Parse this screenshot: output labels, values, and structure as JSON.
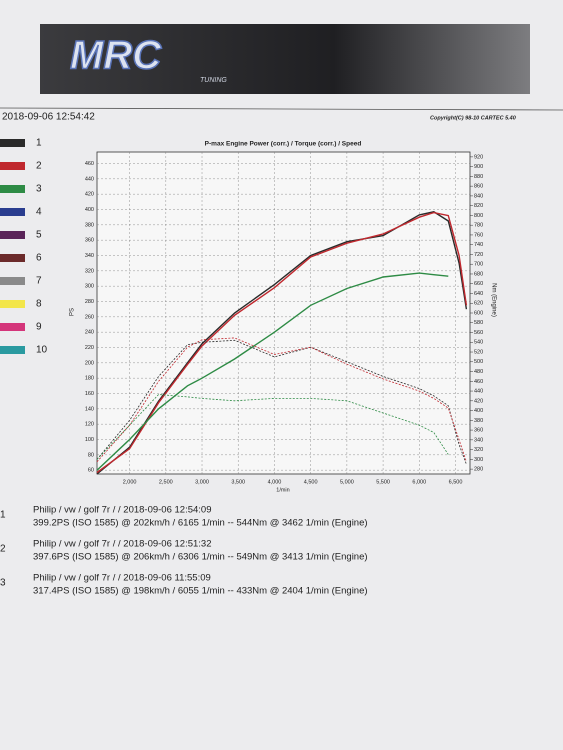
{
  "header": {
    "logo": "MRC",
    "logo_sub": "TUNING",
    "datetime": "2018-09-06 12:54:42",
    "copyright": "Copyright(C) 98-10 CARTEC 5.40"
  },
  "legend": [
    {
      "label": "1",
      "color": "#2a2a2a"
    },
    {
      "label": "2",
      "color": "#c0282e"
    },
    {
      "label": "3",
      "color": "#2e8b45"
    },
    {
      "label": "4",
      "color": "#2a3d8f"
    },
    {
      "label": "5",
      "color": "#5a2358"
    },
    {
      "label": "6",
      "color": "#6b2a2a"
    },
    {
      "label": "7",
      "color": "#8a8a8a"
    },
    {
      "label": "8",
      "color": "#f3e64a"
    },
    {
      "label": "9",
      "color": "#d4357a"
    },
    {
      "label": "10",
      "color": "#2a9aa0"
    }
  ],
  "chart_data": {
    "type": "line",
    "title": "P-max Engine Power (corr.) / Torque (corr.) / Speed",
    "y_label": "PS",
    "y2_label": "Nm (Engine)",
    "x_label": "1/min",
    "x": [
      1550,
      2000,
      2400,
      2800,
      3000,
      3450,
      4000,
      4500,
      5000,
      5500,
      6000,
      6200,
      6400,
      6550,
      6650
    ],
    "xlim": [
      1550,
      6700
    ],
    "xticks": [
      {
        "value": 2000,
        "label": "2,000"
      },
      {
        "value": 2500,
        "label": "2,500"
      },
      {
        "value": 3000,
        "label": "3,000"
      },
      {
        "value": 3500,
        "label": "3,500"
      },
      {
        "value": 4000,
        "label": "4,000"
      },
      {
        "value": 4500,
        "label": "4,500"
      },
      {
        "value": 5000,
        "label": "5,000"
      },
      {
        "value": 5500,
        "label": "5,500"
      },
      {
        "value": 6000,
        "label": "6,000"
      },
      {
        "value": 6500,
        "label": "6,500"
      }
    ],
    "ylim": [
      55,
      475
    ],
    "yticks": [
      60,
      80,
      100,
      120,
      140,
      160,
      180,
      200,
      220,
      240,
      260,
      280,
      300,
      320,
      340,
      360,
      380,
      400,
      420,
      440,
      460
    ],
    "y2lim": [
      270,
      930
    ],
    "y2ticks": [
      280,
      300,
      320,
      340,
      360,
      380,
      400,
      420,
      440,
      460,
      480,
      500,
      520,
      540,
      560,
      580,
      600,
      620,
      640,
      660,
      680,
      700,
      720,
      740,
      760,
      780,
      800,
      820,
      840,
      860,
      880,
      900,
      920
    ],
    "grid": true,
    "series": [
      {
        "color": "#2a2a2a",
        "dash": false,
        "values": [
          55,
          90,
          150,
          200,
          225,
          265,
          302,
          340,
          358,
          366,
          393,
          397,
          385,
          330,
          270
        ]
      },
      {
        "color": "#c0282e",
        "dash": false,
        "values": [
          57,
          88,
          148,
          198,
          222,
          262,
          298,
          338,
          356,
          368,
          390,
          396,
          392,
          340,
          275
        ]
      },
      {
        "color": "#2e8b45",
        "dash": false,
        "values": [
          60,
          100,
          140,
          170,
          180,
          205,
          240,
          275,
          297,
          312,
          317,
          315,
          313,
          null,
          null
        ]
      },
      {
        "color": "#2a2a2a",
        "dash": true,
        "axis": "y2",
        "values": [
          300,
          380,
          470,
          535,
          540,
          544,
          510,
          530,
          500,
          470,
          445,
          430,
          410,
          330,
          290
        ]
      },
      {
        "color": "#c0282e",
        "dash": true,
        "axis": "y2",
        "values": [
          295,
          370,
          460,
          530,
          545,
          549,
          515,
          530,
          495,
          465,
          440,
          425,
          405,
          340,
          295
        ]
      },
      {
        "color": "#2e8b45",
        "dash": true,
        "axis": "y2",
        "values": [
          300,
          370,
          433,
          428,
          425,
          420,
          425,
          425,
          420,
          395,
          370,
          355,
          310,
          null,
          null
        ]
      }
    ]
  },
  "runs": [
    {
      "number": "1",
      "line1": "Philip / vw / golf 7r /  / 2018-09-06 12:54:09",
      "line2": "399.2PS (ISO 1585) @ 202km/h / 6165 1/min -- 544Nm @ 3462 1/min (Engine)"
    },
    {
      "number": "2",
      "line1": "Philip / vw / golf 7r /  / 2018-09-06 12:51:32",
      "line2": "397.6PS (ISO 1585) @ 206km/h / 6306 1/min -- 549Nm @ 3413 1/min (Engine)"
    },
    {
      "number": "3",
      "line1": "Philip / vw / golf 7r /  / 2018-09-06 11:55:09",
      "line2": "317.4PS (ISO 1585) @ 198km/h / 6055 1/min -- 433Nm @ 2404 1/min (Engine)"
    }
  ]
}
